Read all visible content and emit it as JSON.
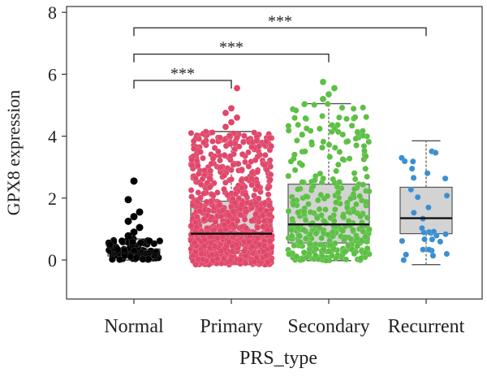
{
  "chart_data": {
    "type": "box+swarm",
    "title": "",
    "xlabel": "PRS_type",
    "ylabel": "GPX8 expression",
    "ylim": [
      -1.3,
      8.2
    ],
    "yticks": [
      0,
      2,
      4,
      6,
      8
    ],
    "grid": false,
    "legend": "none",
    "categories": [
      "Normal",
      "Primary",
      "Secondary",
      "Recurrent"
    ],
    "colors": {
      "Normal": "#000000",
      "Primary": "#e0476a",
      "Secondary": "#5dbf45",
      "Recurrent": "#3a8fd0",
      "box_fill": "#d3d3d3",
      "box_edge": "#555555"
    },
    "series": [
      {
        "name": "Normal",
        "n": 110,
        "q1": 0.13,
        "median": 0.22,
        "q3": 0.36,
        "whisker_low": 0.0,
        "whisker_high": 0.68,
        "outliers": [
          0.78,
          0.9,
          1.05,
          1.25,
          1.4,
          1.55,
          1.95,
          2.55
        ]
      },
      {
        "name": "Primary",
        "n": 1000,
        "q1": 0.3,
        "median": 0.85,
        "q3": 1.9,
        "whisker_low": -0.15,
        "whisker_high": 4.15,
        "outliers": [
          4.3,
          4.45,
          4.6,
          4.75,
          4.9,
          5.55
        ]
      },
      {
        "name": "Secondary",
        "n": 360,
        "q1": 0.55,
        "median": 1.15,
        "q3": 2.45,
        "whisker_low": -0.02,
        "whisker_high": 5.05,
        "outliers": [
          5.2,
          5.35,
          5.55,
          5.75
        ]
      },
      {
        "name": "Recurrent",
        "n": 34,
        "q1": 0.85,
        "median": 1.35,
        "q3": 2.35,
        "whisker_low": -0.15,
        "whisker_high": 3.85,
        "outliers": []
      }
    ],
    "annotations": [
      {
        "from": "Normal",
        "to": "Primary",
        "label": "***",
        "y": 5.8
      },
      {
        "from": "Normal",
        "to": "Secondary",
        "label": "***",
        "y": 6.65
      },
      {
        "from": "Normal",
        "to": "Recurrent",
        "label": "***",
        "y": 7.5
      }
    ]
  }
}
